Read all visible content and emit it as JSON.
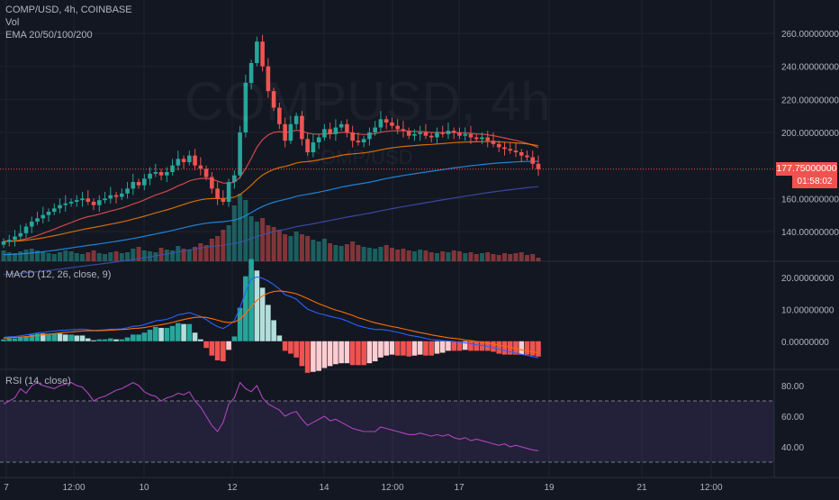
{
  "header": {
    "title": "COMP/USD, 4h, COINBASE",
    "vol_label": "Vol",
    "ema_label": "EMA 20/50/100/200"
  },
  "watermark": {
    "symbol": "COMPUSD, 4h",
    "pair": "COMP/USD"
  },
  "price_axis": {
    "ticks": [
      "260.00000000",
      "240.00000000",
      "220.00000000",
      "200.00000000",
      "160.00000000",
      "140.00000000"
    ],
    "last_price": "177.75000000",
    "countdown": "01:58:02"
  },
  "macd": {
    "label": "MACD (12, 26, close, 9)",
    "ticks": [
      "20.00000000",
      "10.00000000",
      "0.00000000"
    ]
  },
  "rsi": {
    "label": "RSI (14, close)",
    "ticks": [
      "80.00",
      "60.00",
      "40.00"
    ]
  },
  "time_axis": {
    "ticks": [
      "7",
      "12:00",
      "10",
      "12",
      "14",
      "12:00",
      "17",
      "19",
      "21",
      "12:00"
    ]
  },
  "colors": {
    "background": "#131722",
    "up": "#26a69a",
    "down": "#ef5350",
    "ema20": "#ef5350",
    "ema50": "#f57c00",
    "ema100": "#2196f3",
    "ema200": "#3f51b5",
    "rsi": "#ab47bc"
  },
  "chart_data": {
    "type": "candlestick",
    "closes": [
      134,
      135,
      137,
      139,
      143,
      146,
      148,
      150,
      152,
      154,
      156,
      157,
      158,
      159,
      160,
      158,
      156,
      159,
      160,
      162,
      161,
      163,
      166,
      170,
      168,
      172,
      175,
      176,
      174,
      176,
      180,
      184,
      182,
      186,
      180,
      178,
      173,
      166,
      160,
      158,
      170,
      174,
      200,
      230,
      242,
      255,
      240,
      225,
      215,
      205,
      195,
      205,
      210,
      196,
      188,
      194,
      197,
      202,
      199,
      203,
      205,
      200,
      195,
      194,
      196,
      200,
      203,
      208,
      206,
      204,
      202,
      201,
      198,
      199,
      200,
      198,
      197,
      200,
      199,
      201,
      200,
      198,
      199,
      197,
      196,
      197,
      195,
      193,
      191,
      190,
      189,
      188,
      186,
      185,
      181,
      177.75
    ],
    "volumes": [
      12,
      10,
      9,
      11,
      13,
      14,
      12,
      10,
      9,
      8,
      10,
      12,
      11,
      9,
      8,
      10,
      12,
      9,
      8,
      10,
      11,
      9,
      10,
      14,
      16,
      12,
      11,
      10,
      15,
      13,
      12,
      17,
      14,
      13,
      16,
      20,
      18,
      25,
      28,
      35,
      40,
      62,
      75,
      68,
      50,
      44,
      48,
      40,
      38,
      35,
      30,
      28,
      33,
      30,
      28,
      24,
      22,
      25,
      20,
      18,
      17,
      19,
      22,
      18,
      16,
      15,
      14,
      16,
      18,
      15,
      13,
      14,
      12,
      11,
      13,
      12,
      10,
      9,
      11,
      10,
      12,
      11,
      9,
      10,
      8,
      9,
      10,
      8,
      7,
      9,
      8,
      9,
      10,
      7,
      8,
      4
    ],
    "macd": [
      1.2,
      1.4,
      1.5,
      1.7,
      2.0,
      2.3,
      2.6,
      2.8,
      3.0,
      3.2,
      3.4,
      3.5,
      3.6,
      3.7,
      3.8,
      3.6,
      3.4,
      3.5,
      3.6,
      3.8,
      3.8,
      3.9,
      4.2,
      4.7,
      4.8,
      5.2,
      5.8,
      6.4,
      6.6,
      6.9,
      7.5,
      8.3,
      8.6,
      9.0,
      8.4,
      7.8,
      6.8,
      5.6,
      4.6,
      4.0,
      5.0,
      6.5,
      10.5,
      15.5,
      19.5,
      20.2,
      19.8,
      18.9,
      17.8,
      16.4,
      14.6,
      14.0,
      13.2,
      11.6,
      10.1,
      9.4,
      8.7,
      8.3,
      7.8,
      7.4,
      7.0,
      6.4,
      5.6,
      4.9,
      4.4,
      4.0,
      3.7,
      3.7,
      3.5,
      3.2,
      2.8,
      2.4,
      1.9,
      1.6,
      1.3,
      0.9,
      0.5,
      0.4,
      0.2,
      0.1,
      -0.1,
      -0.3,
      -0.5,
      -0.8,
      -1.1,
      -1.3,
      -1.6,
      -2.0,
      -2.5,
      -2.9,
      -3.3,
      -3.7,
      -4.1,
      -4.4,
      -4.8,
      -5.2
    ],
    "signal": [
      1.0,
      1.1,
      1.2,
      1.3,
      1.5,
      1.6,
      1.8,
      2.0,
      2.2,
      2.4,
      2.6,
      2.8,
      2.9,
      3.1,
      3.2,
      3.3,
      3.3,
      3.3,
      3.4,
      3.5,
      3.6,
      3.7,
      3.8,
      4.0,
      4.1,
      4.3,
      4.6,
      4.9,
      5.2,
      5.5,
      5.9,
      6.4,
      6.8,
      7.2,
      7.5,
      7.6,
      7.5,
      7.1,
      6.6,
      6.1,
      5.9,
      6.0,
      7.0,
      8.7,
      10.9,
      12.8,
      14.2,
      15.1,
      15.6,
      15.8,
      15.6,
      15.3,
      14.9,
      14.2,
      13.4,
      12.6,
      11.8,
      11.1,
      10.4,
      9.8,
      9.3,
      8.7,
      8.1,
      7.4,
      6.9,
      6.3,
      5.8,
      5.4,
      5.0,
      4.6,
      4.3,
      3.9,
      3.5,
      3.1,
      2.7,
      2.4,
      2.0,
      1.7,
      1.4,
      1.1,
      0.9,
      0.7,
      0.4,
      0.2,
      -0.1,
      -0.3,
      -0.6,
      -0.9,
      -1.2,
      -1.5,
      -1.9,
      -2.3,
      -2.7,
      -3.0,
      -3.3,
      -3.6
    ],
    "rsi": [
      68,
      70,
      72,
      78,
      75,
      80,
      82,
      80,
      79,
      78,
      80,
      81,
      82,
      80,
      79,
      75,
      70,
      72,
      73,
      75,
      77,
      78,
      80,
      82,
      80,
      76,
      74,
      73,
      70,
      72,
      73,
      75,
      74,
      76,
      70,
      66,
      60,
      54,
      50,
      56,
      68,
      72,
      82,
      78,
      76,
      80,
      72,
      68,
      66,
      64,
      60,
      62,
      63,
      58,
      54,
      56,
      58,
      60,
      57,
      58,
      56,
      54,
      52,
      51,
      50,
      50,
      50,
      53,
      52,
      51,
      50,
      49,
      48,
      48,
      49,
      48,
      47,
      48,
      47,
      48,
      46,
      45,
      46,
      44,
      45,
      44,
      43,
      42,
      41,
      42,
      40,
      41,
      40,
      39,
      38,
      37.5
    ],
    "last_price": 177.75,
    "y_range": [
      128,
      268
    ],
    "macd_range": [
      -6,
      22
    ],
    "rsi_range": [
      20,
      90
    ],
    "rsi_bands": [
      70,
      30
    ]
  }
}
